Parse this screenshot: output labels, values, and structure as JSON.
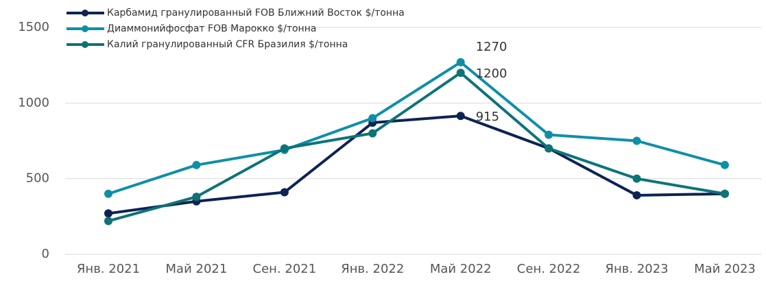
{
  "chart_data": {
    "type": "line",
    "categories": [
      "Янв. 2021",
      "Май 2021",
      "Сен. 2021",
      "Янв. 2022",
      "Май 2022",
      "Сен. 2022",
      "Янв. 2023",
      "Май 2023"
    ],
    "series": [
      {
        "name": "Карбамид гранулированный FOB Ближний Восток $/тонна",
        "color": "#0d2353",
        "values": [
          270,
          350,
          410,
          870,
          915,
          700,
          390,
          400
        ],
        "value_labels": [
          null,
          null,
          null,
          null,
          "915",
          null,
          null,
          null
        ]
      },
      {
        "name": "Диаммонийфосфат FOB Марокко $/тонна",
        "color": "#0e8fa8",
        "values": [
          400,
          590,
          690,
          900,
          1270,
          790,
          750,
          590
        ],
        "value_labels": [
          null,
          null,
          null,
          null,
          "1270",
          null,
          null,
          null
        ]
      },
      {
        "name": "Калий гранулированный CFR Бразилия $/тонна",
        "color": "#0d7377",
        "values": [
          220,
          380,
          700,
          800,
          1200,
          700,
          500,
          400
        ],
        "value_labels": [
          null,
          null,
          null,
          null,
          "1200",
          null,
          null,
          null
        ]
      }
    ],
    "ylim": [
      0,
      1500
    ],
    "yticks": [
      0,
      500,
      1000,
      1500
    ],
    "grid": true,
    "legend": "top-left"
  }
}
